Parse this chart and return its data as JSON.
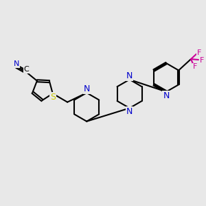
{
  "background_color": "#e8e8e8",
  "bond_color": "#000000",
  "n_color": "#0000cc",
  "s_color": "#cccc00",
  "f_color": "#cc0099",
  "line_width": 1.5,
  "figsize": [
    3.0,
    3.0
  ],
  "dpi": 100,
  "xlim": [
    0,
    10
  ],
  "ylim": [
    0,
    10
  ]
}
